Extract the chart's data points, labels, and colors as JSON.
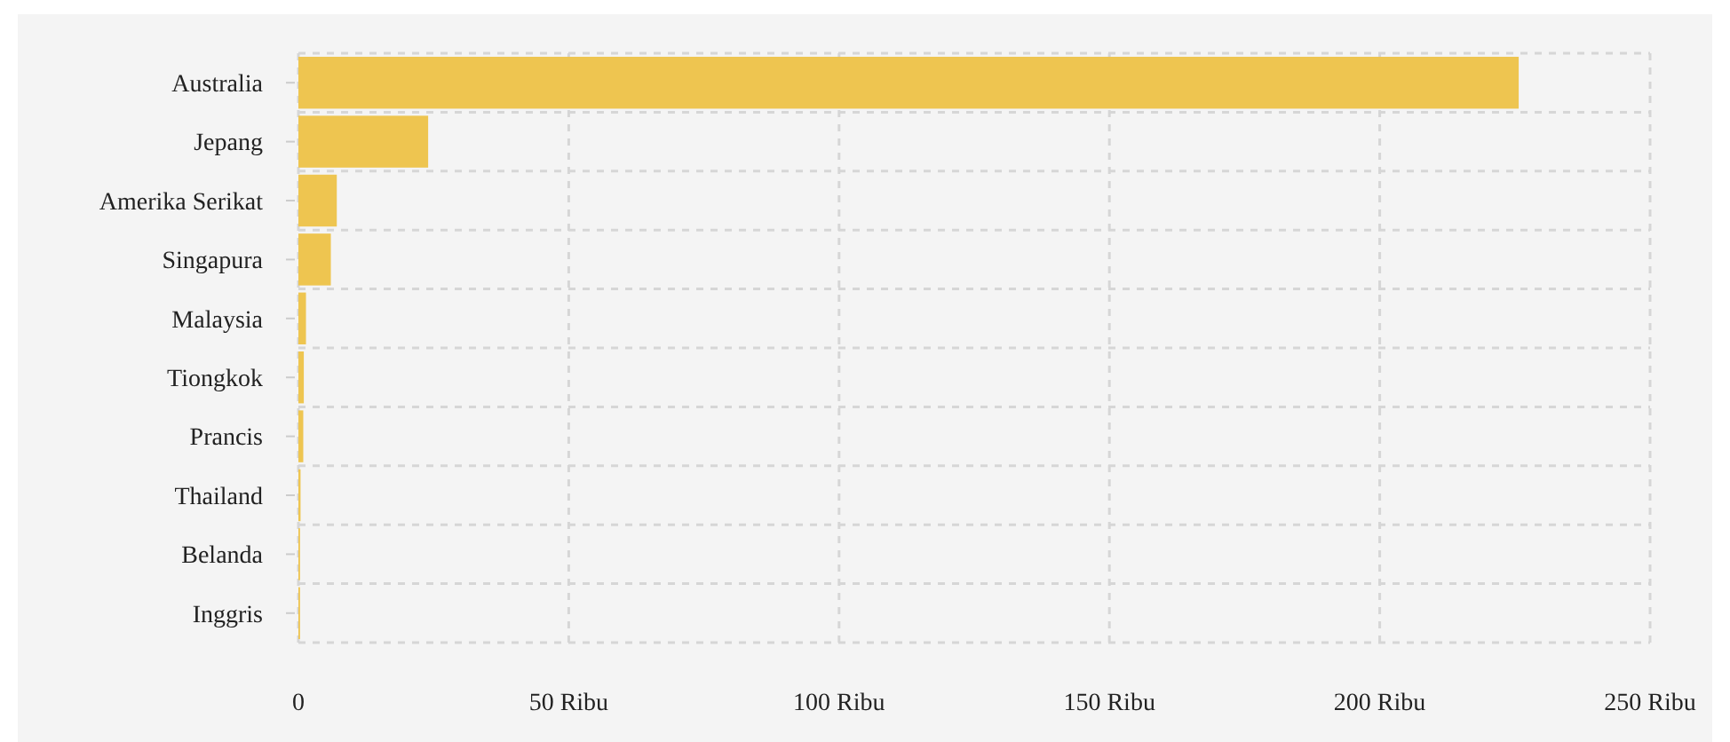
{
  "chart_data": {
    "type": "bar",
    "orientation": "horizontal",
    "categories": [
      "Australia",
      "Jepang",
      "Amerika Serikat",
      "Singapura",
      "Malaysia",
      "Tiongkok",
      "Prancis",
      "Thailand",
      "Belanda",
      "Inggris"
    ],
    "values": [
      225.7,
      24,
      7.1,
      6,
      1.4,
      1,
      0.9,
      0.4,
      0.3,
      0.3
    ],
    "color": "#eec550",
    "xlim": [
      0,
      250
    ],
    "xticks": [
      0,
      {
        "value": 50,
        "label": "50 Ribu"
      },
      {
        "value": 100,
        "label": "100 Ribu"
      },
      {
        "value": 150,
        "label": "150 Ribu"
      },
      {
        "value": 200,
        "label": "200 Ribu"
      },
      {
        "value": 250,
        "label": "250 Ribu"
      }
    ],
    "grid": true
  }
}
